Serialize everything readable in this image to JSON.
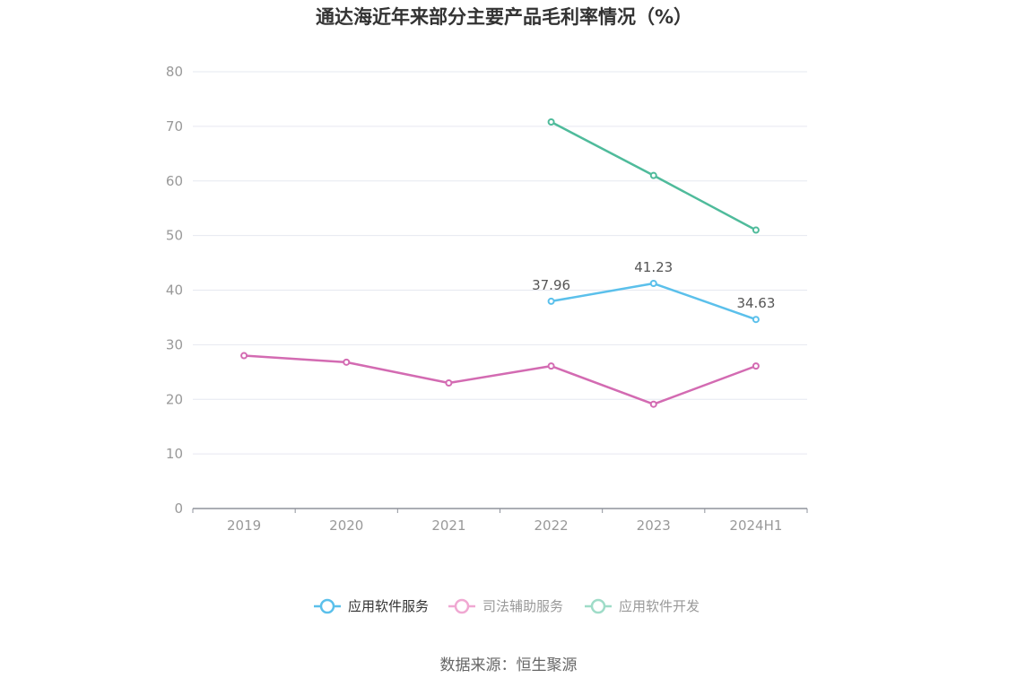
{
  "chart_data": {
    "type": "line",
    "title": "通达海近年来部分主要产品毛利率情况（%）",
    "categories": [
      "2019",
      "2020",
      "2021",
      "2022",
      "2023",
      "2024H1"
    ],
    "ylim": [
      0,
      80
    ],
    "yticks": [
      0,
      10,
      20,
      30,
      40,
      50,
      60,
      70,
      80
    ],
    "grid": true,
    "legend_position": "bottom",
    "series": [
      {
        "name": "应用软件服务",
        "color": "#5bc0eb",
        "values": [
          null,
          null,
          null,
          37.96,
          41.23,
          34.63
        ],
        "labels": [
          "",
          "",
          "",
          "37.96",
          "41.23",
          "34.63"
        ],
        "legend_active": true
      },
      {
        "name": "司法辅助服务",
        "color": "#d36bb2",
        "legend_color": "#f0a8d2",
        "values": [
          28.0,
          26.8,
          23.0,
          26.1,
          19.1,
          26.1
        ],
        "legend_active": false
      },
      {
        "name": "应用软件开发",
        "color": "#4fbb9b",
        "legend_color": "#9fdcc8",
        "values": [
          null,
          null,
          null,
          70.8,
          61.0,
          51.0
        ],
        "legend_active": false
      }
    ]
  },
  "source_text": "数据来源：恒生聚源"
}
